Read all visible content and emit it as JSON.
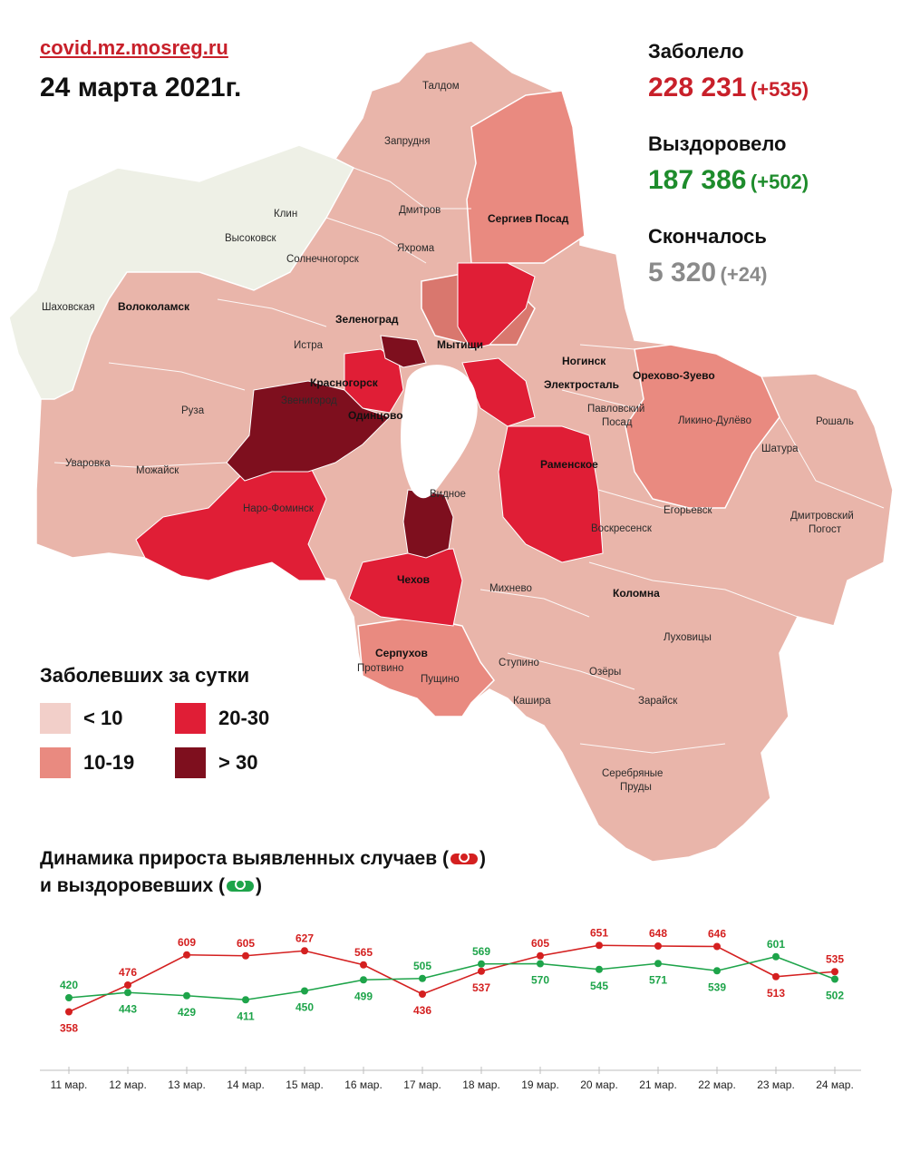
{
  "header": {
    "site": "covid.mz.mosreg.ru",
    "date": "24 марта 2021г."
  },
  "stats": {
    "infected_label": "Заболело",
    "infected_value": "228 231",
    "infected_delta": "(+535)",
    "recovered_label": "Выздоровело",
    "recovered_value": "187 386",
    "recovered_delta": "(+502)",
    "died_label": "Скончалось",
    "died_value": "5 320",
    "died_delta": "(+24)"
  },
  "legend": {
    "title": "Заболевших за сутки",
    "items": [
      {
        "label": "< 10",
        "color": "#f2cfc9"
      },
      {
        "label": "10-19",
        "color": "#e98a80"
      },
      {
        "label": "20-30",
        "color": "#e01e36"
      },
      {
        "label": "> 30",
        "color": "#7e0f1e"
      }
    ]
  },
  "map": {
    "towns": [
      "Талдом",
      "Запрудня",
      "Дмитров",
      "Яхрома",
      "Сергиев Посад",
      "Клин",
      "Высоковск",
      "Солнечногорск",
      "Шаховская",
      "Волоколамск",
      "Зеленоград",
      "Истра",
      "Мытищи",
      "Ногинск",
      "Электросталь",
      "Орехово-Зуево",
      "Красногорск",
      "Павловский Посад",
      "Ликино-Дулёво",
      "Рошаль",
      "Звенигород",
      "Одинцово",
      "Руза",
      "Шатура",
      "Уваровка",
      "Можайск",
      "Раменское",
      "Наро-Фоминск",
      "Егорьевск",
      "Видное",
      "Воскресенск",
      "Дмитровский Погост",
      "Чехов",
      "Михнево",
      "Коломна",
      "Серпухов",
      "Луховицы",
      "Пущино",
      "Ступино",
      "Озёры",
      "Протвино",
      "Кашира",
      "Зарайск",
      "Серебряные Пруды"
    ]
  },
  "dynamics": {
    "title_line1": "Динамика прироста выявленных случаев (",
    "title_line1_end": ")",
    "title_line2": "и выздоровевших (",
    "title_line2_end": ")"
  },
  "chart_data": {
    "type": "line",
    "categories": [
      "11 мар.",
      "12 мар.",
      "13 мар.",
      "14 мар.",
      "15 мар.",
      "16 мар.",
      "17 мар.",
      "18 мар.",
      "19 мар.",
      "20 мар.",
      "21 мар.",
      "22 мар.",
      "23 мар.",
      "24 мар."
    ],
    "series": [
      {
        "values": [
          358,
          476,
          609,
          605,
          627,
          565,
          436,
          537,
          605,
          651,
          648,
          646,
          513,
          535
        ],
        "color": "#d42020"
      },
      {
        "values": [
          420,
          443,
          429,
          411,
          450,
          499,
          505,
          569,
          570,
          545,
          571,
          539,
          601,
          502
        ],
        "color": "#1ea44a"
      }
    ],
    "ylim": [
      300,
      700
    ]
  }
}
